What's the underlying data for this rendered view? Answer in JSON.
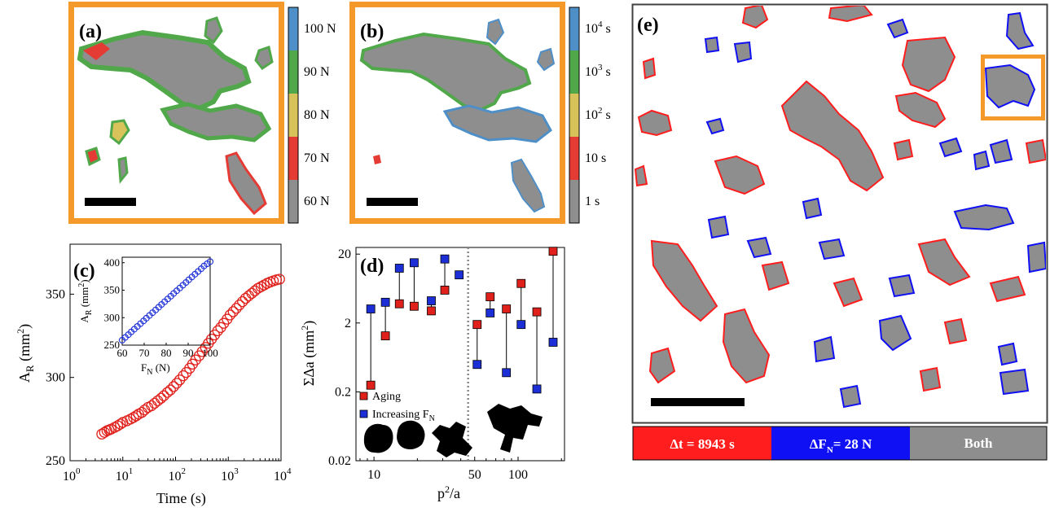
{
  "panels": {
    "a": {
      "label": "(a)",
      "colorbar": [
        "100 N",
        "90 N",
        "80 N",
        "70 N",
        "60 N"
      ]
    },
    "b": {
      "label": "(b)",
      "colorbar": [
        "10",
        "10",
        "10",
        "10 s",
        "1 s"
      ],
      "colorbar_sup": [
        "4",
        "3",
        "2",
        "",
        ""
      ],
      "colorbar_unit": "s"
    },
    "c": {
      "label": "(c)"
    },
    "d": {
      "label": "(d)"
    },
    "e": {
      "label": "(e)"
    }
  },
  "colorbar_colors": [
    "#4f8fc8",
    "#50a84a",
    "#d8c25a",
    "#e53b35",
    "#8e8e8e"
  ],
  "chart_data": [
    {
      "type": "scatter",
      "panel": "c",
      "xlabel": "Time (s)",
      "ylabel_main": "A",
      "ylabel_sub": "R",
      "ylabel_unit": "(mm",
      "xscale": "log",
      "xlim": [
        1,
        10000
      ],
      "ylim": [
        250,
        380
      ],
      "xticks": [
        1,
        10,
        100,
        1000,
        10000
      ],
      "xtick_base": "10",
      "xtick_exp": [
        "0",
        "1",
        "2",
        "3",
        "4"
      ],
      "yticks": [
        250,
        300,
        350
      ],
      "color": "#e0201b",
      "x": [
        4,
        4.5,
        5,
        5.5,
        6,
        7,
        8,
        9,
        10,
        12,
        14,
        16,
        18,
        20,
        23,
        26,
        30,
        35,
        40,
        46,
        53,
        60,
        70,
        80,
        92,
        105,
        120,
        140,
        160,
        185,
        210,
        240,
        280,
        320,
        370,
        420,
        480,
        550,
        630,
        720,
        820,
        950,
        1080,
        1240,
        1420,
        1620,
        1860,
        2130,
        2440,
        2790,
        3190,
        3650,
        4180,
        4780,
        5470,
        6260,
        7160,
        8200,
        9380
      ],
      "y": [
        266,
        267,
        268,
        268.5,
        269,
        270,
        271,
        272,
        273,
        274,
        275,
        276,
        277,
        278,
        279,
        280.5,
        282,
        283,
        284.5,
        286,
        287.5,
        289,
        291,
        292.5,
        294.5,
        296.5,
        298.5,
        301,
        303,
        305.5,
        308,
        310.5,
        313,
        315.5,
        318,
        320.5,
        323,
        325.5,
        328,
        330,
        332.5,
        335,
        337.5,
        339.5,
        341.5,
        343.5,
        345.5,
        347.5,
        349,
        350.5,
        352,
        353.5,
        354.5,
        355.5,
        356.5,
        357.3,
        358,
        358.6,
        359
      ]
    },
    {
      "type": "scatter",
      "panel": "c-inset",
      "xlabel_main": "F",
      "xlabel_sub": "N",
      "xlabel_unit": "(N)",
      "ylabel_main": "A",
      "ylabel_sub": "R",
      "ylabel_unit": "(mm",
      "xlim": [
        60,
        100
      ],
      "ylim": [
        250,
        410
      ],
      "xticks": [
        60,
        70,
        80,
        90,
        100
      ],
      "yticks": [
        250,
        300,
        350,
        400
      ],
      "color": "#1c2fd6",
      "x": [
        60,
        61.4,
        62.8,
        64.1,
        65.5,
        66.9,
        68.3,
        69.7,
        71,
        72.4,
        73.8,
        75.2,
        76.6,
        77.9,
        79.3,
        80.7,
        82.1,
        83.4,
        84.8,
        86.2,
        87.6,
        89,
        90.3,
        91.7,
        93.1,
        94.5,
        95.9,
        97.2,
        98.6,
        100
      ],
      "y": [
        259,
        264,
        269,
        274,
        279,
        284,
        289,
        294,
        299,
        304,
        309,
        314,
        319,
        324,
        329,
        334,
        339,
        344,
        349,
        354,
        359,
        364,
        369,
        374,
        379,
        384,
        389,
        394,
        398,
        402
      ]
    },
    {
      "type": "scatter",
      "panel": "d",
      "xlabel_main": "p",
      "xlabel_sup": "2",
      "xlabel_tail": "/a",
      "ylabel": "ΣΔa (mm",
      "xscale": "log",
      "yscale": "log",
      "xlim": [
        7.5,
        210
      ],
      "ylim": [
        0.02,
        25
      ],
      "xticks": [
        10,
        50,
        100
      ],
      "yticks": [
        0.02,
        0.2,
        2,
        20
      ],
      "ytick_labels": [
        "0.02",
        "0.2",
        "2",
        "20"
      ],
      "divider_x": 45,
      "legend": [
        {
          "name": "Aging",
          "color": "#e0201b"
        },
        {
          "name": "Increasing F",
          "sub": "N",
          "color": "#1c2fd6"
        }
      ],
      "pairs": [
        {
          "x": 9.5,
          "aging": 0.25,
          "increasing": 3.2
        },
        {
          "x": 12,
          "aging": 1.3,
          "increasing": 4.0
        },
        {
          "x": 15,
          "aging": 3.8,
          "increasing": 12.5
        },
        {
          "x": 19,
          "aging": 3.5,
          "increasing": 15.0
        },
        {
          "x": 25,
          "aging": 3.0,
          "increasing": 4.2
        },
        {
          "x": 31,
          "aging": 6.0,
          "increasing": 17.0
        },
        {
          "x": 39,
          "aging": null,
          "increasing": 10.0
        },
        {
          "x": 52,
          "aging": 1.9,
          "increasing": 0.5
        },
        {
          "x": 64,
          "aging": 4.8,
          "increasing": 2.8
        },
        {
          "x": 83,
          "aging": 3.2,
          "increasing": 0.38
        },
        {
          "x": 105,
          "aging": 7.5,
          "increasing": 1.9
        },
        {
          "x": 135,
          "aging": 2.9,
          "increasing": 0.22
        },
        {
          "x": 175,
          "aging": 22.0,
          "increasing": 1.05
        }
      ]
    }
  ],
  "legend_e": {
    "dt": "Δt = 8943 s",
    "df_main": "ΔF",
    "df_sub": "N",
    "df_tail": "= 28 N",
    "both": "Both"
  },
  "legend_e_colors": {
    "dt": "#ff1d1d",
    "df": "#1010f5",
    "both": "#8e8e8e"
  }
}
